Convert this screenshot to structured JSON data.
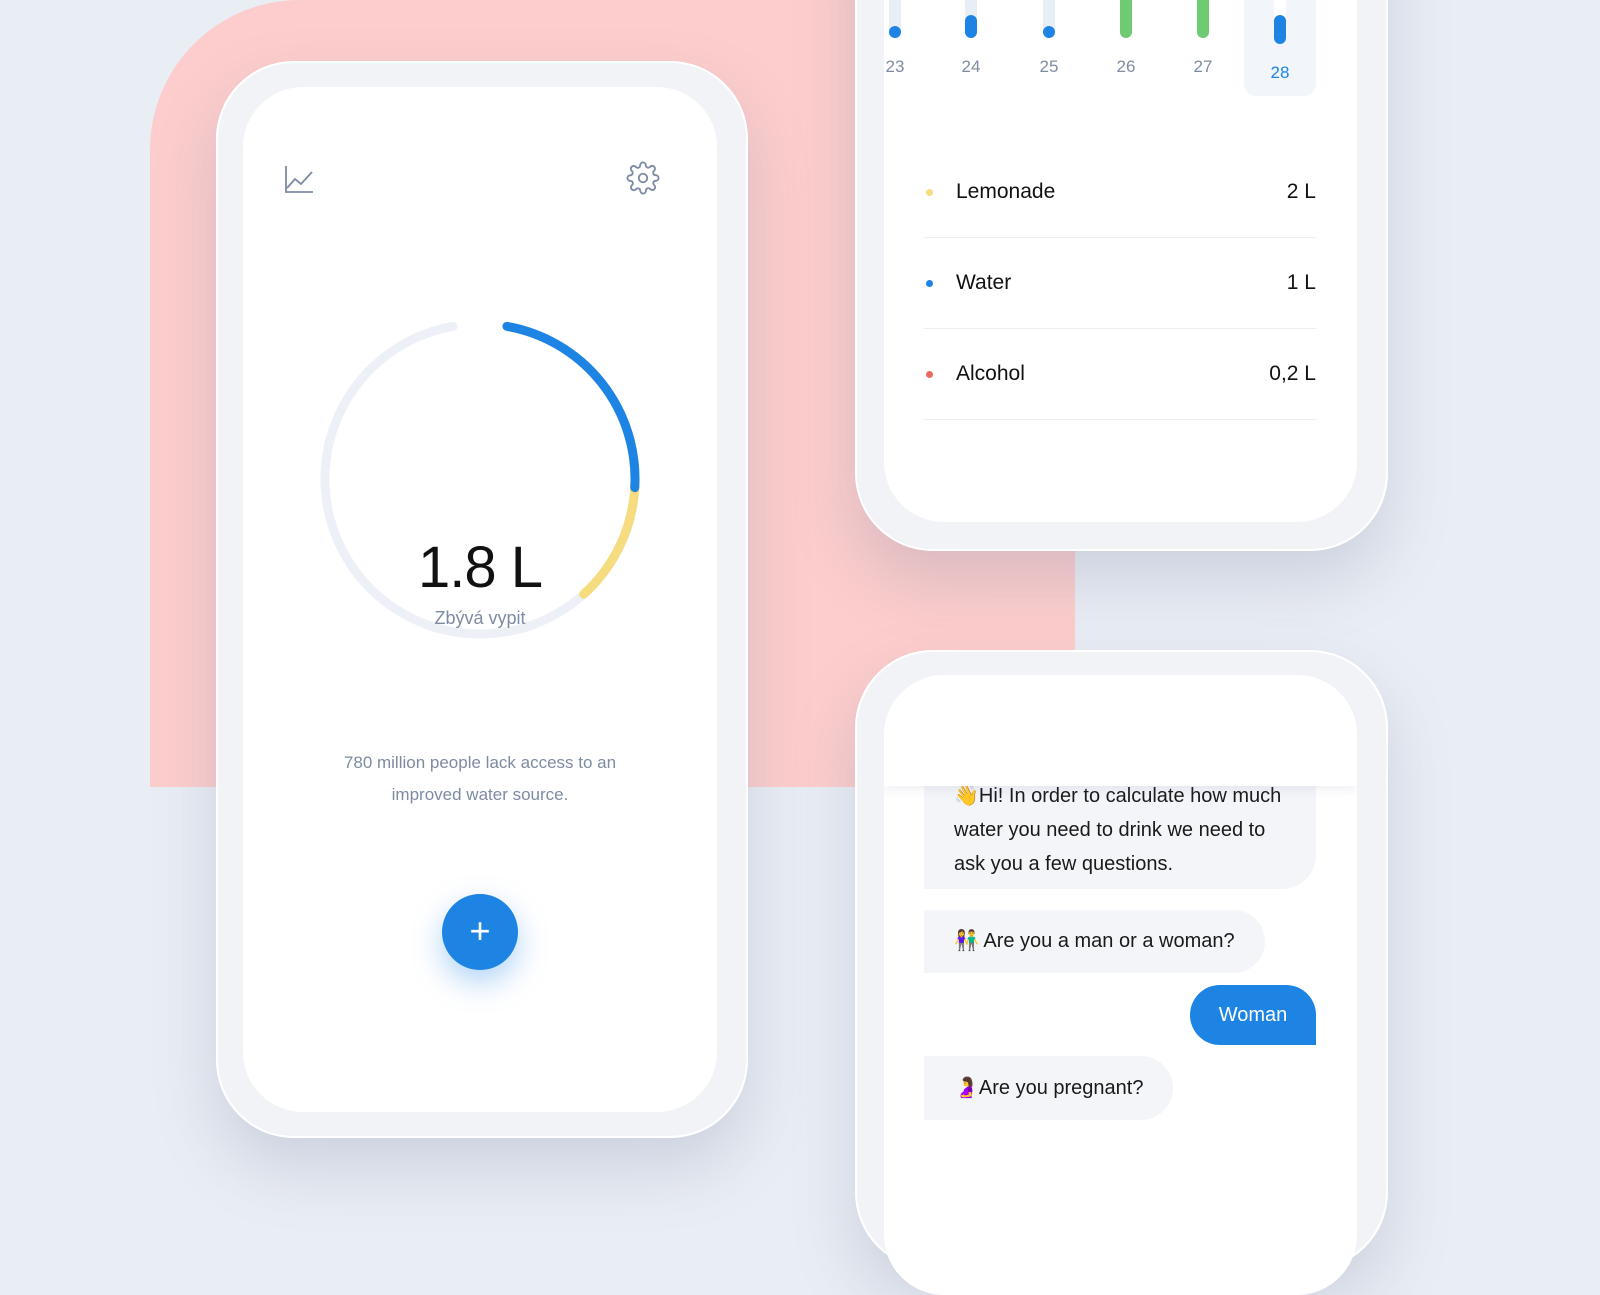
{
  "home": {
    "amount": "1.8 L",
    "subtitle": "Zbývá vypit",
    "fact_line1": "780 million people lack access to an",
    "fact_line2": "improved water source.",
    "add_label": "+",
    "stats_icon": "line-chart-icon",
    "settings_icon": "gear-icon",
    "progress": {
      "water_fraction": 0.26,
      "lemonade_fraction": 0.14
    },
    "colors": {
      "blue": "#1e84e4",
      "yellow": "#f5dc7e",
      "track": "#edf1f7"
    }
  },
  "history": {
    "days": [
      {
        "label": "23",
        "level": 0.05,
        "color": "#1e84e4",
        "selected": false
      },
      {
        "label": "24",
        "level": 0.4,
        "color": "#1e84e4",
        "selected": false
      },
      {
        "label": "25",
        "level": 0.05,
        "color": "#1e84e4",
        "selected": false
      },
      {
        "label": "26",
        "level": 1.0,
        "color": "#6fcb72",
        "selected": false
      },
      {
        "label": "27",
        "level": 1.0,
        "color": "#6fcb72",
        "selected": false
      },
      {
        "label": "28",
        "level": 0.5,
        "color": "#1e84e4",
        "selected": true
      }
    ],
    "drinks": [
      {
        "name": "Lemonade",
        "amount": "2 L",
        "color": "#f5dc7e"
      },
      {
        "name": "Water",
        "amount": "1 L",
        "color": "#1e84e4"
      },
      {
        "name": "Alcohol",
        "amount": "0,2 L",
        "color": "#ec6a5e"
      }
    ]
  },
  "chat": {
    "messages": [
      {
        "from": "bot",
        "emoji": "👋",
        "lines": [
          "Hi! In order to calculate how much",
          "water you need to drink we need to",
          "ask you a few questions."
        ]
      },
      {
        "from": "bot",
        "emoji": "👫",
        "text": "Are you a man or a woman?"
      },
      {
        "from": "user",
        "text": "Woman"
      },
      {
        "from": "bot",
        "emoji": "🤰",
        "text": "Are you pregnant?"
      }
    ]
  }
}
